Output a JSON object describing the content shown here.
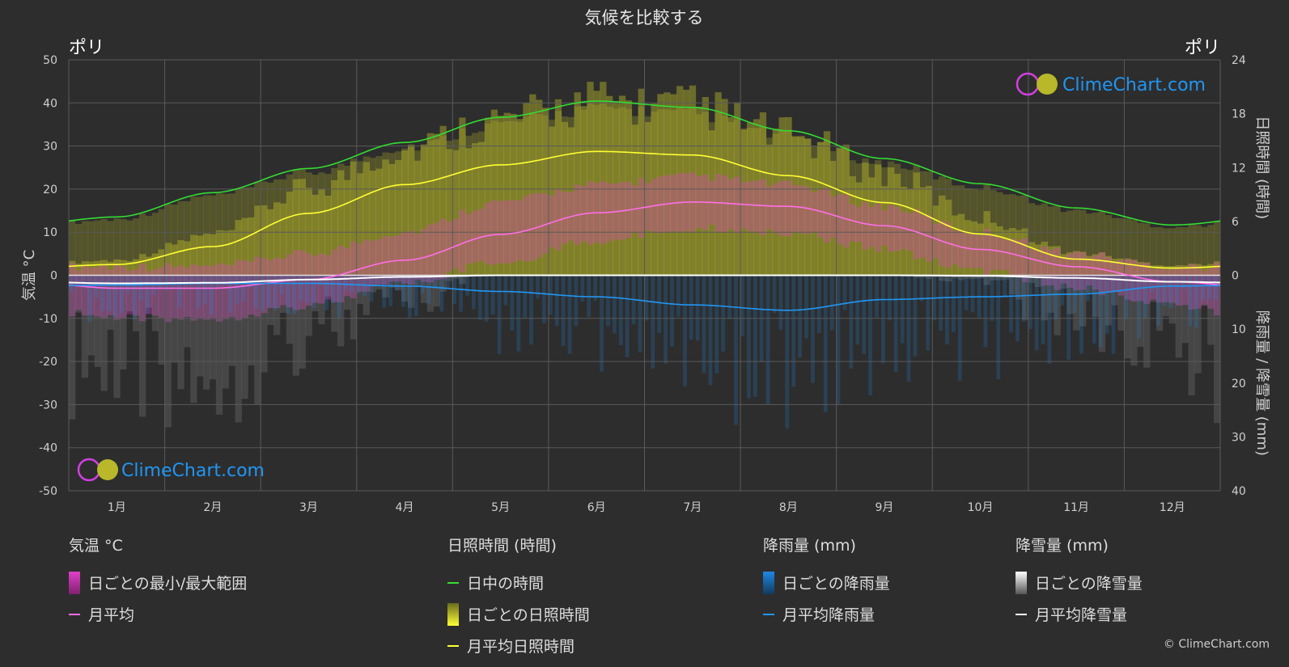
{
  "title": "気候を比較する",
  "location_left": "ポリ",
  "location_right": "ポリ",
  "brand": "ClimeChart.com",
  "copyright": "© ClimeChart.com",
  "colors": {
    "background": "#2d2d2d",
    "temp_band": "#e040c8",
    "temp_line": "#ff6ee8",
    "sun_band": "#b8b82a",
    "sun_line": "#ffff33",
    "daylight_line": "#33dd33",
    "rain": "#1e88e5",
    "rain_line": "#2196f3",
    "snow": "#bdbdbd",
    "snow_line": "#ffffff"
  },
  "chart_data": {
    "type": "line",
    "months": [
      "1月",
      "2月",
      "3月",
      "4月",
      "5月",
      "6月",
      "7月",
      "8月",
      "9月",
      "10月",
      "11月",
      "12月"
    ],
    "y_left": {
      "label": "気温 °C",
      "range": [
        -50,
        50
      ],
      "ticks": [
        "50",
        "40",
        "30",
        "20",
        "10",
        "0",
        "-10",
        "-20",
        "-30",
        "-40",
        "-50"
      ]
    },
    "y_right_top": {
      "label": "日照時間 (時間)",
      "range": [
        0,
        24
      ],
      "ticks": [
        "24",
        "18",
        "12",
        "6",
        "0"
      ]
    },
    "y_right_bottom": {
      "label": "降雨量 / 降雪量 (mm)",
      "range": [
        0,
        40
      ],
      "ticks": [
        "10",
        "20",
        "30",
        "40"
      ]
    },
    "series": [
      {
        "name": "日中の時間",
        "unit": "hours",
        "values": [
          6.5,
          9.2,
          11.9,
          14.8,
          17.6,
          19.4,
          18.7,
          16.1,
          13.0,
          10.2,
          7.5,
          5.6
        ]
      },
      {
        "name": "月平均日照時間",
        "unit": "hours",
        "values": [
          1.2,
          3.2,
          6.9,
          10.1,
          12.3,
          13.8,
          13.4,
          11.1,
          8.1,
          4.6,
          1.8,
          0.8
        ]
      },
      {
        "name": "月平均",
        "unit": "°C",
        "values": [
          -3.0,
          -3.0,
          -1.0,
          3.5,
          9.5,
          14.5,
          17.0,
          16.0,
          11.5,
          6.0,
          2.0,
          -1.5
        ]
      },
      {
        "name": "月平均降雨量",
        "unit": "mm",
        "values": [
          1.8,
          1.5,
          1.5,
          2.0,
          3.0,
          4.0,
          5.5,
          6.5,
          4.5,
          4.0,
          3.5,
          2.0
        ]
      },
      {
        "name": "月平均降雪量",
        "unit": "mm",
        "values": [
          1.5,
          1.4,
          0.8,
          0.3,
          0.0,
          0.0,
          0.0,
          0.0,
          0.0,
          0.1,
          0.5,
          1.2
        ]
      }
    ],
    "daily_temp_range": {
      "name": "日ごとの最小/最大範囲",
      "min": [
        -9,
        -9,
        -6,
        -1,
        4,
        9,
        12,
        11,
        7,
        2,
        -2,
        -6
      ],
      "max": [
        1,
        1,
        4,
        9,
        16,
        20,
        22,
        20,
        15,
        9,
        4,
        1
      ]
    },
    "grid": true
  },
  "legend": {
    "groups": [
      {
        "heading": "気温 °C",
        "items": [
          {
            "label": "日ごとの最小/最大範囲",
            "kind": "box",
            "color": "#e040c8"
          },
          {
            "label": "月平均",
            "kind": "line",
            "color": "#ff6ee8"
          }
        ]
      },
      {
        "heading": "日照時間 (時間)",
        "items": [
          {
            "label": "日中の時間",
            "kind": "line",
            "color": "#33dd33"
          },
          {
            "label": "日ごとの日照時間",
            "kind": "box",
            "color": "#d4d42a"
          },
          {
            "label": "月平均日照時間",
            "kind": "line",
            "color": "#ffff33"
          }
        ]
      },
      {
        "heading": "降雨量 (mm)",
        "items": [
          {
            "label": "日ごとの降雨量",
            "kind": "box",
            "color": "#1e88e5"
          },
          {
            "label": "月平均降雨量",
            "kind": "line",
            "color": "#2196f3"
          }
        ]
      },
      {
        "heading": "降雪量 (mm)",
        "items": [
          {
            "label": "日ごとの降雪量",
            "kind": "box",
            "color": "#e0e0e0"
          },
          {
            "label": "月平均降雪量",
            "kind": "line",
            "color": "#ffffff"
          }
        ]
      }
    ]
  }
}
